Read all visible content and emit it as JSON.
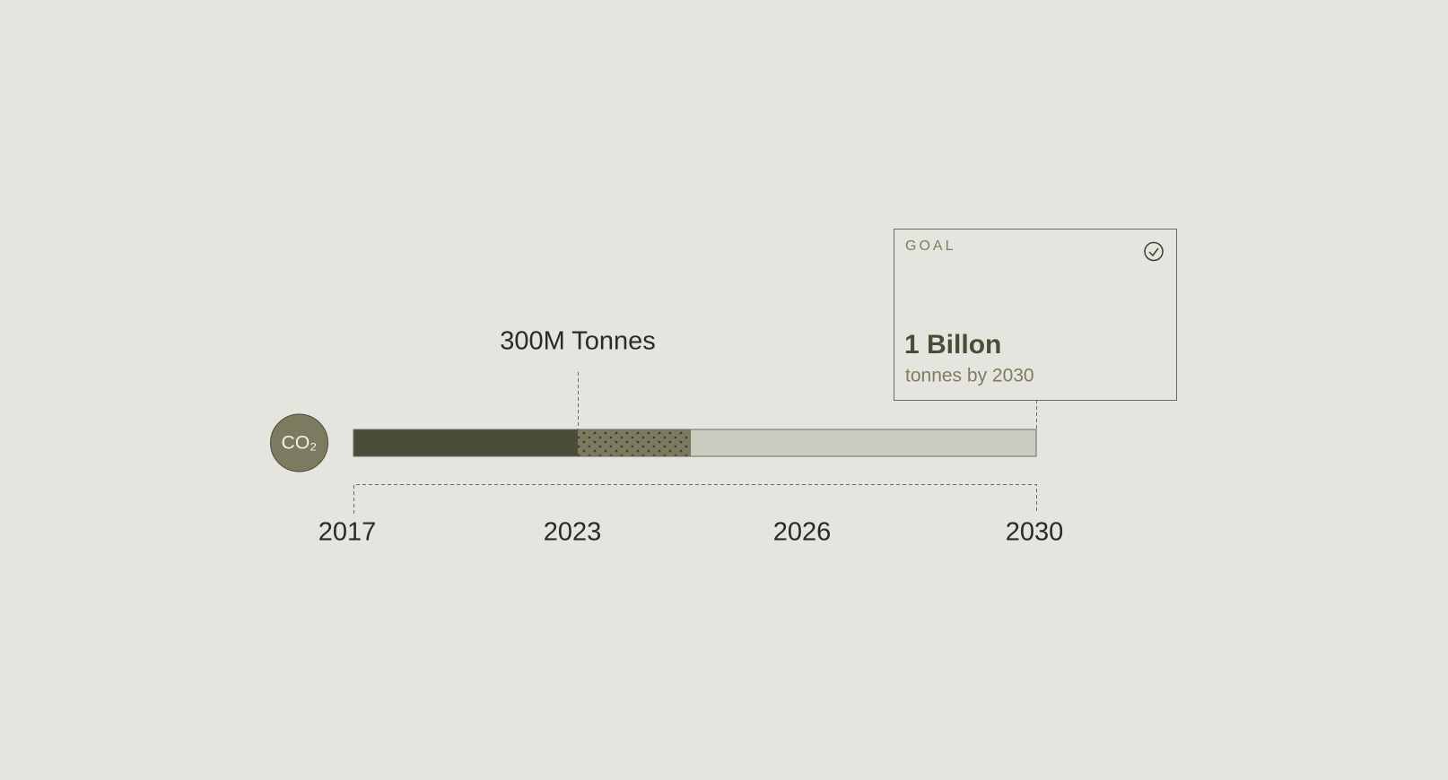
{
  "badge": "CO₂",
  "marker": {
    "label": "300M Tonnes"
  },
  "goal": {
    "tag": "GOAL",
    "value": "1 Billon",
    "caption": "tonnes by 2030"
  },
  "timeline": {
    "years": [
      "2017",
      "2023",
      "2026",
      "2030"
    ]
  }
}
